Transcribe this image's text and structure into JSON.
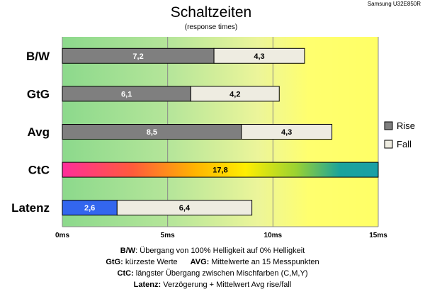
{
  "chart_data": {
    "type": "bar",
    "orientation": "horizontal",
    "stacked": true,
    "title": "Schaltzeiten",
    "subtitle": "(response times)",
    "model": "Samsung U32E850R",
    "x_unit": "ms",
    "xlim": [
      0,
      15
    ],
    "x_ticks": [
      {
        "value": 0,
        "label": "0ms"
      },
      {
        "value": 5,
        "label": "5ms"
      },
      {
        "value": 10,
        "label": "10ms"
      },
      {
        "value": 15,
        "label": "15ms"
      }
    ],
    "grid": true,
    "legend_position": "right",
    "categories": [
      "B/W",
      "GtG",
      "Avg",
      "CtC",
      "Latenz"
    ],
    "series": [
      {
        "name": "Rise",
        "color": "#7f7f7f",
        "values": [
          7.2,
          6.1,
          8.5,
          0,
          0
        ],
        "labels": [
          "7,2",
          "6,1",
          "8,5",
          "",
          ""
        ]
      },
      {
        "name": "Fall",
        "color": "#eeece1",
        "values": [
          4.3,
          4.2,
          4.3,
          0,
          6.4
        ],
        "labels": [
          "4,3",
          "4,2",
          "4,3",
          "",
          "6,4"
        ]
      }
    ],
    "special_bars": [
      {
        "category": "CtC",
        "value": 17.8,
        "label": "17,8",
        "fill": "rainbow"
      },
      {
        "category": "Latenz",
        "value": 2.6,
        "label": "2,6",
        "fill": "#3366ee"
      }
    ],
    "legend": [
      {
        "label": "Rise",
        "color": "#7f7f7f"
      },
      {
        "label": "Fall",
        "color": "#eeece1"
      }
    ],
    "background_colors": [
      "#8cd98c",
      "#ffff66"
    ]
  },
  "notes": {
    "bw_key": "B/W",
    "bw_text": ": Übergang von 100% Helligkeit auf 0% Helligkeit",
    "gtg_key": "GtG:",
    "gtg_text": " kürzeste Werte",
    "avg_key": "AVG:",
    "avg_text": " Mittelwerte an 15 Messpunkten",
    "ctc_key": "CtC:",
    "ctc_text": " längster Übergang zwischen Mischfarben (C,M,Y)",
    "lat_key": "Latenz:",
    "lat_text": " Verzögerung + Mittelwert Avg rise/fall"
  }
}
